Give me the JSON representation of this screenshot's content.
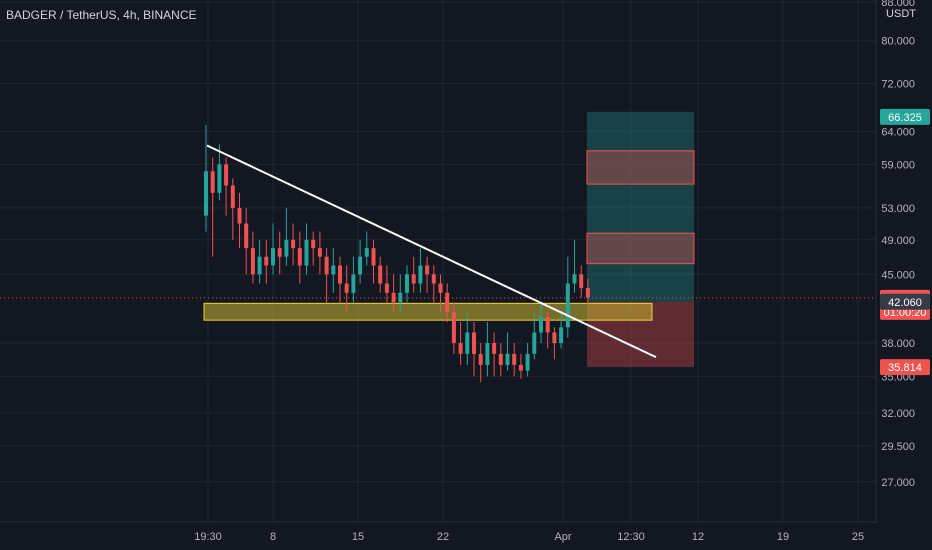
{
  "header": {
    "symbol_title": "BADGER / TetherUS, 4h, BINANCE"
  },
  "axis": {
    "currency": "USDT"
  },
  "colors": {
    "bg": "#131722",
    "grid": "#1f2430",
    "text": "#b2b5be",
    "up": "#26a69a",
    "down": "#ef5350",
    "trend": "#ffffff",
    "zone_fill": "#c9b62f",
    "zone_stroke": "#f0d43a"
  },
  "chart_data": {
    "type": "candlestick",
    "y_scale": "log",
    "ylim": [
      25.5,
      88.0
    ],
    "y_ticks": [
      "88.000",
      "80.000",
      "72.000",
      "64.000",
      "59.000",
      "53.000",
      "49.000",
      "45.000",
      "38.000",
      "35.000",
      "32.000",
      "29.500",
      "27.000"
    ],
    "y_tick_values": [
      88,
      80,
      72,
      64,
      59,
      53,
      49,
      45,
      38,
      35,
      32,
      29.5,
      27
    ],
    "x_ticks": [
      "19:30",
      "8",
      "15",
      "22",
      "Apr",
      "12:30",
      "12",
      "19",
      "25"
    ],
    "price_labels": [
      {
        "label": "66.325",
        "value": 66.325,
        "color": "#26a69a"
      },
      {
        "label": "42.471",
        "value": 42.471,
        "color": "#ef5350",
        "sublabel": "01:00:20"
      },
      {
        "label": "42.060",
        "value": 42.06,
        "color": "#363a45"
      },
      {
        "label": "35.814",
        "value": 35.814,
        "color": "#ef5350"
      }
    ],
    "last_price": 42.471,
    "support_zone": [
      40.2,
      41.9
    ],
    "trendline": {
      "from": 61.8,
      "to": 36.7
    },
    "target_zone": [
      42.06,
      66.325
    ],
    "stop_zone": [
      35.814,
      42.06
    ],
    "highlight_boxes": [
      [
        56.2,
        61.0
      ],
      [
        46.2,
        49.8
      ]
    ],
    "candles_note": "approximate 4h candles",
    "candles": [
      [
        52,
        58,
        65,
        50
      ],
      [
        58,
        55,
        60,
        47
      ],
      [
        55,
        59,
        62,
        54
      ],
      [
        59,
        56,
        60,
        52
      ],
      [
        56,
        53,
        57,
        49
      ],
      [
        53,
        51,
        55,
        48
      ],
      [
        51,
        48,
        53,
        45
      ],
      [
        48,
        45,
        50,
        44
      ],
      [
        45,
        47,
        49,
        44
      ],
      [
        47,
        46,
        49,
        44
      ],
      [
        46,
        48,
        51,
        45
      ],
      [
        48,
        47,
        50,
        45
      ],
      [
        47,
        49,
        53,
        46
      ],
      [
        49,
        48,
        51,
        46
      ],
      [
        48,
        46,
        50,
        44
      ],
      [
        46,
        49,
        51,
        45
      ],
      [
        49,
        48,
        50,
        46
      ],
      [
        48,
        47,
        50,
        45
      ],
      [
        47,
        45,
        48,
        42
      ],
      [
        45,
        46,
        48,
        43
      ],
      [
        46,
        44,
        47,
        42
      ],
      [
        44,
        43,
        46,
        41
      ],
      [
        43,
        45,
        47,
        42
      ],
      [
        45,
        47,
        49,
        44
      ],
      [
        47,
        48,
        50,
        46
      ],
      [
        48,
        46,
        49,
        44
      ],
      [
        46,
        44,
        47,
        43
      ],
      [
        44,
        43,
        46,
        42
      ],
      [
        43,
        42,
        45,
        41
      ],
      [
        42,
        43,
        45,
        41
      ],
      [
        43,
        45,
        46,
        42
      ],
      [
        45,
        44,
        47,
        43
      ],
      [
        44,
        46,
        48,
        43
      ],
      [
        46,
        45,
        47,
        43
      ],
      [
        45,
        44,
        46,
        42
      ],
      [
        44,
        43,
        45,
        41
      ],
      [
        43,
        41,
        44,
        40
      ],
      [
        41,
        38,
        42,
        37
      ],
      [
        38,
        37,
        40,
        36
      ],
      [
        37,
        39,
        41,
        36
      ],
      [
        39,
        37,
        40,
        35
      ],
      [
        37,
        36,
        38,
        34.5
      ],
      [
        36,
        38,
        40,
        35
      ],
      [
        38,
        37,
        39,
        35
      ],
      [
        37,
        36,
        38,
        35
      ],
      [
        36,
        37,
        39,
        35.5
      ],
      [
        37,
        36,
        38,
        35
      ],
      [
        36,
        35.5,
        37,
        34.8
      ],
      [
        35.5,
        37,
        38,
        35
      ],
      [
        37,
        39,
        41,
        36.5
      ],
      [
        39,
        40.5,
        42,
        38
      ],
      [
        40.5,
        39,
        41,
        37.5
      ],
      [
        39,
        38,
        39.5,
        36.5
      ],
      [
        38,
        39.5,
        41,
        37.5
      ],
      [
        39.5,
        44,
        47,
        38.5
      ],
      [
        44,
        45,
        49,
        43
      ],
      [
        45,
        43.5,
        46,
        42.5
      ],
      [
        43.5,
        42.5,
        44.5,
        41.8
      ]
    ]
  }
}
